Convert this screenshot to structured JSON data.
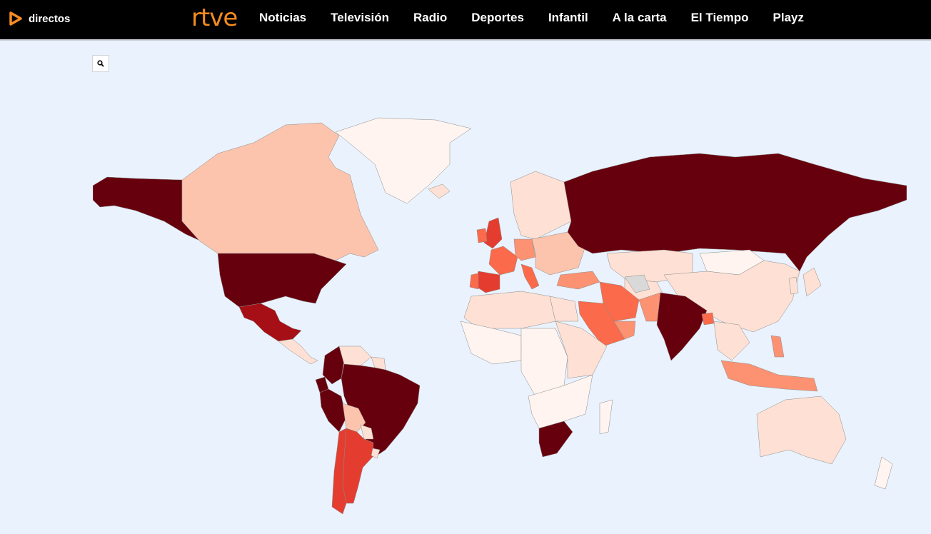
{
  "header": {
    "directos_label": "directos",
    "logo_text": "rtve",
    "nav_items": [
      "Noticias",
      "Televisión",
      "Radio",
      "Deportes",
      "Infantil",
      "A la carta",
      "El Tiempo",
      "Playz"
    ]
  },
  "colors": {
    "ocean": "#eaf2fd",
    "header_bg": "#000000",
    "accent": "#f68b1f",
    "scale": [
      "#fff4f0",
      "#fee1d4",
      "#fcc4ad",
      "#fc9272",
      "#fb6a4a",
      "#e43d30",
      "#a60f15",
      "#67000d"
    ],
    "no_data": "#d9d9d9"
  },
  "map": {
    "type": "choropleth",
    "projection": "world",
    "zoom_icon": "search-icon",
    "regions": [
      {
        "name": "Alaska",
        "level": 7
      },
      {
        "name": "Canada",
        "level": 2
      },
      {
        "name": "Greenland",
        "level": 0
      },
      {
        "name": "United States",
        "level": 7
      },
      {
        "name": "Mexico",
        "level": 6
      },
      {
        "name": "Central America",
        "level": 1
      },
      {
        "name": "Colombia",
        "level": 7
      },
      {
        "name": "Venezuela",
        "level": 1
      },
      {
        "name": "Guianas",
        "level": 1
      },
      {
        "name": "Ecuador",
        "level": 7
      },
      {
        "name": "Peru",
        "level": 7
      },
      {
        "name": "Brazil",
        "level": 7
      },
      {
        "name": "Bolivia",
        "level": 2
      },
      {
        "name": "Paraguay",
        "level": 1
      },
      {
        "name": "Argentina",
        "level": 5
      },
      {
        "name": "Chile",
        "level": 5
      },
      {
        "name": "Uruguay",
        "level": 1
      },
      {
        "name": "Iceland",
        "level": 1
      },
      {
        "name": "Scandinavia",
        "level": 1
      },
      {
        "name": "United Kingdom",
        "level": 5
      },
      {
        "name": "Ireland",
        "level": 4
      },
      {
        "name": "France",
        "level": 4
      },
      {
        "name": "Spain",
        "level": 5
      },
      {
        "name": "Portugal",
        "level": 4
      },
      {
        "name": "Germany",
        "level": 3
      },
      {
        "name": "Italy",
        "level": 4
      },
      {
        "name": "Eastern Europe",
        "level": 2
      },
      {
        "name": "Turkey",
        "level": 3
      },
      {
        "name": "Russia",
        "level": 7
      },
      {
        "name": "Kazakhstan",
        "level": 1
      },
      {
        "name": "Central Asia",
        "level": 1
      },
      {
        "name": "Mongolia",
        "level": 0
      },
      {
        "name": "China",
        "level": 1
      },
      {
        "name": "Iran",
        "level": 4
      },
      {
        "name": "Saudi Arabia",
        "level": 4
      },
      {
        "name": "Gulf States",
        "level": 3
      },
      {
        "name": "Pakistan",
        "level": 3
      },
      {
        "name": "Afghanistan",
        "level": "no_data"
      },
      {
        "name": "India",
        "level": 7
      },
      {
        "name": "Bangladesh",
        "level": 4
      },
      {
        "name": "Southeast Asia",
        "level": 1
      },
      {
        "name": "Philippines",
        "level": 3
      },
      {
        "name": "Indonesia",
        "level": 3
      },
      {
        "name": "Japan",
        "level": 1
      },
      {
        "name": "Korea",
        "level": 1
      },
      {
        "name": "North Africa",
        "level": 1
      },
      {
        "name": "Egypt",
        "level": 1
      },
      {
        "name": "West Africa",
        "level": 0
      },
      {
        "name": "Central Africa",
        "level": 0
      },
      {
        "name": "East Africa",
        "level": 1
      },
      {
        "name": "Southern Africa",
        "level": 0
      },
      {
        "name": "South Africa",
        "level": 7
      },
      {
        "name": "Madagascar",
        "level": 0
      },
      {
        "name": "Australia",
        "level": 1
      },
      {
        "name": "New Zealand",
        "level": 0
      }
    ]
  }
}
